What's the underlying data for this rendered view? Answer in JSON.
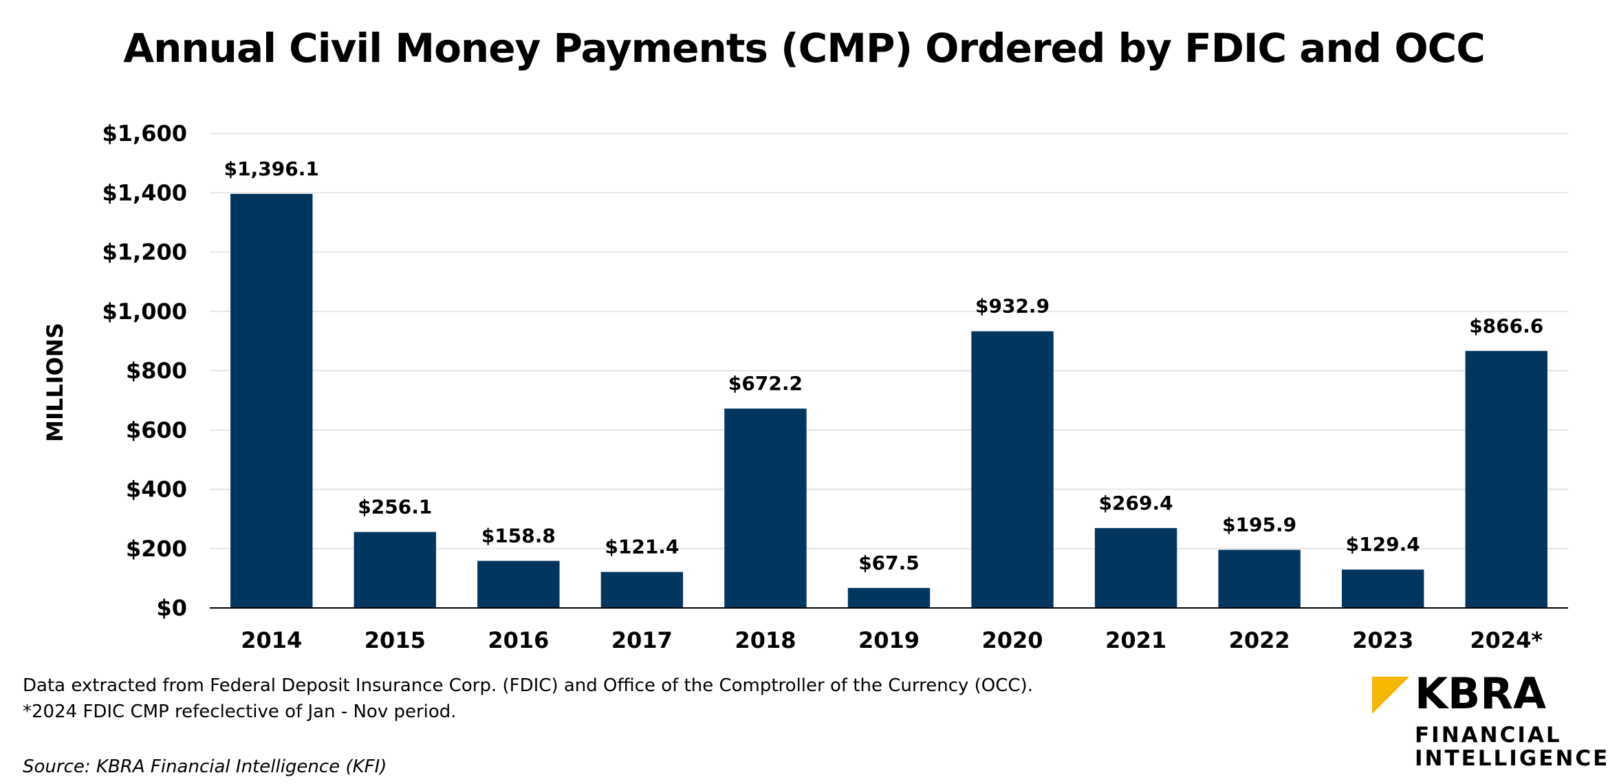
{
  "chart_data": {
    "type": "bar",
    "title": "Annual Civil Money Payments (CMP) Ordered by FDIC and OCC",
    "xlabel": "",
    "ylabel": "MILLIONS",
    "ylim": [
      0,
      1600
    ],
    "yticks": [
      0,
      200,
      400,
      600,
      800,
      1000,
      1200,
      1400,
      1600
    ],
    "ytick_labels": [
      "$0",
      "$200",
      "$400",
      "$600",
      "$800",
      "$1,000",
      "$1,200",
      "$1,400",
      "$1,600"
    ],
    "categories": [
      "2014",
      "2015",
      "2016",
      "2017",
      "2018",
      "2019",
      "2020",
      "2021",
      "2022",
      "2023",
      "2024*"
    ],
    "values": [
      1396.1,
      256.1,
      158.8,
      121.4,
      672.2,
      67.5,
      932.9,
      269.4,
      195.9,
      129.4,
      866.6
    ],
    "data_labels": [
      "$1,396.1",
      "$256.1",
      "$158.8",
      "$121.4",
      "$672.2",
      "$67.5",
      "$932.9",
      "$269.4",
      "$195.9",
      "$129.4",
      "$866.6"
    ],
    "grid": true,
    "legend": "none",
    "bar_color": "#02365F",
    "grid_color": "#E6E6E6"
  },
  "notes": {
    "line1": "Data extracted from Federal Deposit Insurance Corp. (FDIC) and Office of the Comptroller of the Currency (OCC).",
    "line2": "*2024 FDIC CMP refeclective of Jan - Nov period.",
    "source": "Source: KBRA Financial Intelligence (KFI)"
  },
  "logo": {
    "wordmark": "KBRA",
    "line1": "FINANCIAL",
    "line2": "INTELLIGENCE",
    "accent_color": "#F5B700"
  }
}
